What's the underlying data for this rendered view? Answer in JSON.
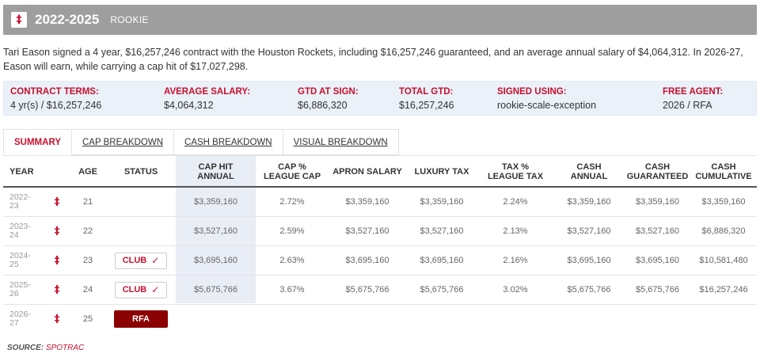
{
  "header": {
    "logo_glyph": "‡",
    "years": "2022-2025",
    "contract_type": "ROOKIE"
  },
  "description": "Tari Eason signed a 4 year, $16,257,246 contract with the Houston Rockets, including $16,257,246 guaranteed, and an average annual salary of $4,064,312. In 2026-27, Eason will earn, while carrying a cap hit of $17,027,298.",
  "terms": [
    {
      "label": "CONTRACT TERMS:",
      "value": "4 yr(s) / $16,257,246"
    },
    {
      "label": "AVERAGE SALARY:",
      "value": "$4,064,312"
    },
    {
      "label": "GTD AT SIGN:",
      "value": "$6,886,320"
    },
    {
      "label": "TOTAL GTD:",
      "value": "$16,257,246"
    },
    {
      "label": "SIGNED USING:",
      "value": "rookie-scale-exception"
    },
    {
      "label": "FREE AGENT:",
      "value": "2026 / RFA"
    }
  ],
  "tabs": [
    "SUMMARY",
    "CAP BREAKDOWN",
    "CASH BREAKDOWN",
    "VISUAL BREAKDOWN"
  ],
  "table": {
    "columns": [
      {
        "line1": "YEAR",
        "line2": ""
      },
      {
        "line1": "AGE",
        "line2": ""
      },
      {
        "line1": "STATUS",
        "line2": ""
      },
      {
        "line1": "CAP HIT",
        "line2": "ANNUAL"
      },
      {
        "line1": "CAP %",
        "line2": "LEAGUE CAP"
      },
      {
        "line1": "APRON SALARY",
        "line2": ""
      },
      {
        "line1": "LUXURY TAX",
        "line2": ""
      },
      {
        "line1": "TAX %",
        "line2": "LEAGUE TAX"
      },
      {
        "line1": "CASH",
        "line2": "ANNUAL"
      },
      {
        "line1": "CASH",
        "line2": "GUARANTEED"
      },
      {
        "line1": "CASH",
        "line2": "CUMULATIVE"
      }
    ],
    "rows": [
      {
        "year_a": "2022-",
        "year_b": "23",
        "age": "21",
        "status": "",
        "status_type": "none",
        "cap_hit": "$3,359,160",
        "cap_pct": "2.72%",
        "apron": "$3,359,160",
        "lux_tax": "$3,359,160",
        "tax_pct": "2.24%",
        "cash_annual": "$3,359,160",
        "cash_gtd": "$3,359,160",
        "cash_cum": "$3,359,160"
      },
      {
        "year_a": "2023-",
        "year_b": "24",
        "age": "22",
        "status": "",
        "status_type": "none",
        "cap_hit": "$3,527,160",
        "cap_pct": "2.59%",
        "apron": "$3,527,160",
        "lux_tax": "$3,527,160",
        "tax_pct": "2.13%",
        "cash_annual": "$3,527,160",
        "cash_gtd": "$3,527,160",
        "cash_cum": "$6,886,320"
      },
      {
        "year_a": "2024-",
        "year_b": "25",
        "age": "23",
        "status": "CLUB",
        "status_type": "club",
        "cap_hit": "$3,695,160",
        "cap_pct": "2.63%",
        "apron": "$3,695,160",
        "lux_tax": "$3,695,160",
        "tax_pct": "2.16%",
        "cash_annual": "$3,695,160",
        "cash_gtd": "$3,695,160",
        "cash_cum": "$10,581,480"
      },
      {
        "year_a": "2025-",
        "year_b": "26",
        "age": "24",
        "status": "CLUB",
        "status_type": "club",
        "cap_hit": "$5,675,766",
        "cap_pct": "3.67%",
        "apron": "$5,675,766",
        "lux_tax": "$5,675,766",
        "tax_pct": "3.02%",
        "cash_annual": "$5,675,766",
        "cash_gtd": "$5,675,766",
        "cash_cum": "$16,257,246"
      },
      {
        "year_a": "2026-",
        "year_b": "27",
        "age": "25",
        "status": "RFA",
        "status_type": "rfa",
        "cap_hit": "",
        "cap_pct": "",
        "apron": "",
        "lux_tax": "",
        "tax_pct": "",
        "cash_annual": "",
        "cash_gtd": "",
        "cash_cum": ""
      }
    ]
  },
  "icons": {
    "team": "‡",
    "check": "✓"
  },
  "source": {
    "label": "SOURCE:",
    "link": "SPOTRAC"
  },
  "colors": {
    "accent": "#c8102e",
    "header_bg": "#9e9e9e",
    "terms_bg": "#eaf1f9",
    "cap_col_bg": "#e8edf6",
    "rfa_badge": "#8b0000"
  }
}
